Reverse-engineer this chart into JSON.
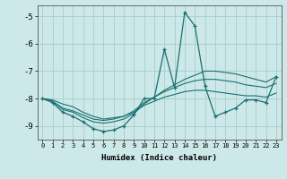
{
  "xlabel": "Humidex (Indice chaleur)",
  "bg_color": "#cce8e8",
  "grid_color": "#aacccc",
  "line_color": "#1a7070",
  "x_ticks": [
    0,
    1,
    2,
    3,
    4,
    5,
    6,
    7,
    8,
    9,
    10,
    11,
    12,
    13,
    14,
    15,
    16,
    17,
    18,
    19,
    20,
    21,
    22,
    23
  ],
  "ylim": [
    -9.5,
    -4.6
  ],
  "xlim": [
    -0.5,
    23.5
  ],
  "yticks": [
    -9,
    -8,
    -7,
    -6,
    -5
  ],
  "series_main": [
    -8.0,
    -8.15,
    -8.5,
    -8.65,
    -8.85,
    -9.1,
    -9.2,
    -9.15,
    -9.0,
    -8.6,
    -8.0,
    -8.0,
    -6.2,
    -7.6,
    -4.85,
    -5.35,
    -7.55,
    -8.65,
    -8.5,
    -8.35,
    -8.05,
    -8.05,
    -8.15,
    -7.2
  ],
  "series_trend1": [
    -8.0,
    -8.1,
    -8.4,
    -8.5,
    -8.7,
    -8.85,
    -8.9,
    -8.85,
    -8.75,
    -8.55,
    -8.2,
    -7.95,
    -7.7,
    -7.5,
    -7.3,
    -7.15,
    -7.0,
    -7.0,
    -7.05,
    -7.1,
    -7.2,
    -7.3,
    -7.4,
    -7.2
  ],
  "series_trend2": [
    -8.0,
    -8.1,
    -8.35,
    -8.45,
    -8.6,
    -8.75,
    -8.8,
    -8.75,
    -8.65,
    -8.45,
    -8.15,
    -7.95,
    -7.75,
    -7.6,
    -7.45,
    -7.35,
    -7.3,
    -7.3,
    -7.35,
    -7.4,
    -7.5,
    -7.55,
    -7.6,
    -7.45
  ],
  "series_smooth": [
    -8.0,
    -8.05,
    -8.2,
    -8.3,
    -8.5,
    -8.65,
    -8.75,
    -8.7,
    -8.65,
    -8.5,
    -8.25,
    -8.1,
    -7.95,
    -7.85,
    -7.75,
    -7.7,
    -7.7,
    -7.75,
    -7.8,
    -7.85,
    -7.9,
    -7.9,
    -7.95,
    -7.8
  ]
}
